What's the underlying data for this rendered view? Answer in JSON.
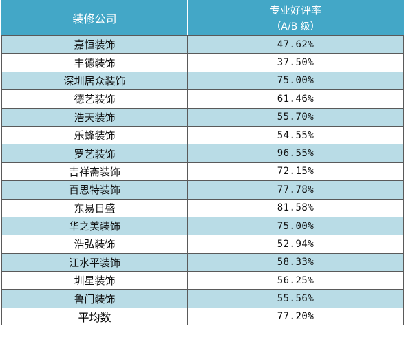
{
  "header": {
    "company": "装修公司",
    "rate_line1": "专业好评率",
    "rate_line2": "（A/B 级）"
  },
  "rows": [
    {
      "company": "嘉恒装饰",
      "rate": "47.62%"
    },
    {
      "company": "丰德装饰",
      "rate": "37.50%"
    },
    {
      "company": "深圳居众装饰",
      "rate": "75.00%"
    },
    {
      "company": "德艺装饰",
      "rate": "61.46%"
    },
    {
      "company": "浩天装饰",
      "rate": "55.70%"
    },
    {
      "company": "乐蜂装饰",
      "rate": "54.55%"
    },
    {
      "company": "罗艺装饰",
      "rate": "96.55%"
    },
    {
      "company": "吉祥斋装饰",
      "rate": "72.15%"
    },
    {
      "company": "百思特装饰",
      "rate": "77.78%"
    },
    {
      "company": "东易日盛",
      "rate": "81.58%"
    },
    {
      "company": "华之美装饰",
      "rate": "75.00%"
    },
    {
      "company": "浩弘装饰",
      "rate": "52.94%"
    },
    {
      "company": "江水平装饰",
      "rate": "58.33%"
    },
    {
      "company": "圳星装饰",
      "rate": "56.25%"
    },
    {
      "company": "鲁门装饰",
      "rate": "55.56%"
    }
  ],
  "average": {
    "label": "平均数",
    "rate": "77.20%"
  },
  "colors": {
    "header_bg": "#43a7c7",
    "row_alt_bg": "#b9dce6",
    "row_plain_bg": "#ffffff",
    "average_bg": "#f0ed1a"
  }
}
